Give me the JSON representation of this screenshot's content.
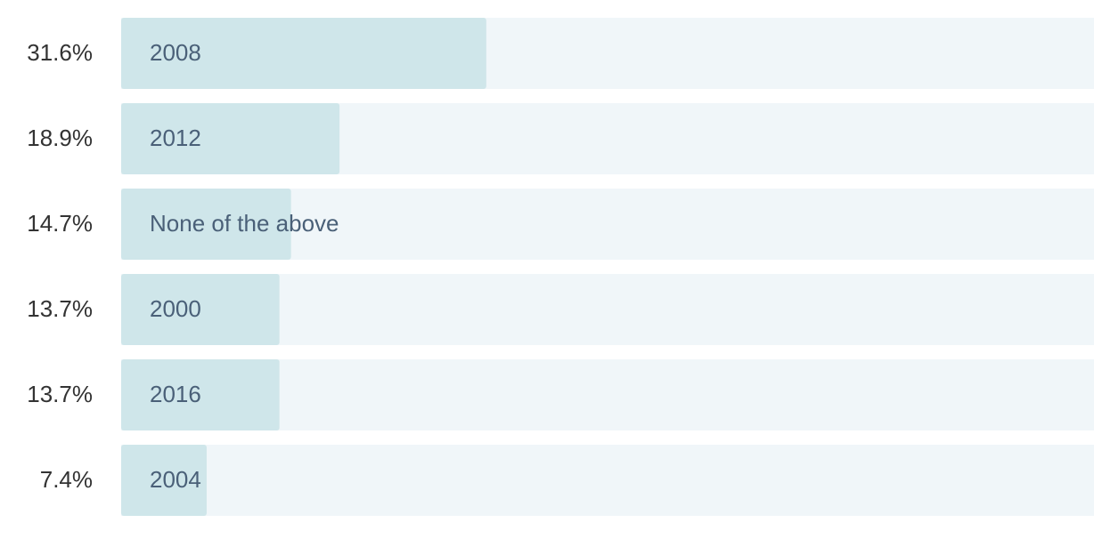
{
  "chart_data": {
    "type": "bar",
    "orientation": "horizontal",
    "categories": [
      "2008",
      "2012",
      "None of the above",
      "2000",
      "2016",
      "2004"
    ],
    "values": [
      31.6,
      18.9,
      14.7,
      13.7,
      13.7,
      7.4
    ],
    "value_labels": [
      "31.6%",
      "18.9%",
      "14.7%",
      "13.7%",
      "13.7%",
      "7.4%"
    ],
    "color": "#cfe6ea",
    "track_color": "#f0f6f9",
    "xlim": [
      0,
      100
    ]
  }
}
